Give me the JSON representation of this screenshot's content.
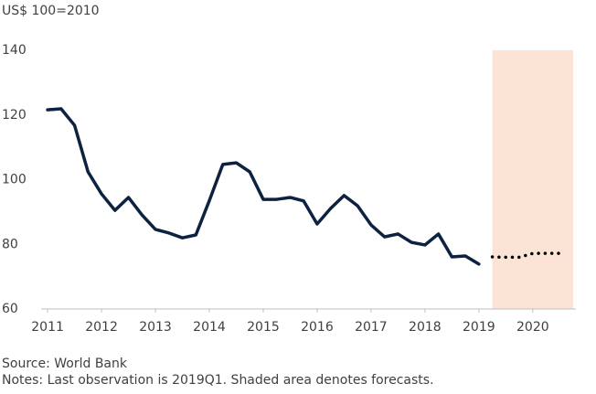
{
  "chart_data": {
    "type": "line",
    "y_unit_label": "US$ 100=2010",
    "source": "Source: World Bank",
    "notes": "Notes: Last observation is 2019Q1. Shaded area denotes forecasts.",
    "xlim": [
      2010.88,
      2020.8
    ],
    "xticks": [
      2011,
      2012,
      2013,
      2014,
      2015,
      2016,
      2017,
      2018,
      2019,
      2020
    ],
    "ylim": [
      60,
      140
    ],
    "yticks": [
      60,
      80,
      100,
      120,
      140
    ],
    "shaded_range": [
      2019.25,
      2020.75
    ],
    "shade_color": "#fbe4d5",
    "series": [
      {
        "color": "#0d2240",
        "style": "solid",
        "x": [
          2011,
          2011.25,
          2011.5,
          2011.75,
          2012,
          2012.25,
          2012.5,
          2012.75,
          2013,
          2013.25,
          2013.5,
          2013.75,
          2014,
          2014.25,
          2014.5,
          2014.75,
          2015,
          2015.25,
          2015.5,
          2015.75,
          2016,
          2016.25,
          2016.5,
          2016.75,
          2017,
          2017.25,
          2017.5,
          2017.75,
          2018,
          2018.25,
          2018.5,
          2018.75,
          2019
        ],
        "values": [
          121.6,
          121.9,
          116.8,
          102.4,
          95.6,
          90.5,
          94.5,
          89.1,
          84.6,
          83.5,
          82.0,
          82.9,
          93.5,
          104.7,
          105.2,
          102.4,
          93.9,
          93.9,
          94.5,
          93.4,
          86.3,
          91.1,
          95.1,
          91.9,
          86.0,
          82.3,
          83.2,
          80.6,
          79.8,
          83.2,
          76.1,
          76.4,
          73.9
        ]
      },
      {
        "color": "#000000",
        "style": "dotted",
        "x": [
          2019.25,
          2019.5,
          2019.75,
          2020,
          2020.25,
          2020.5
        ],
        "values": [
          76.1,
          76.0,
          76.0,
          77.2,
          77.2,
          77.2
        ]
      }
    ]
  }
}
